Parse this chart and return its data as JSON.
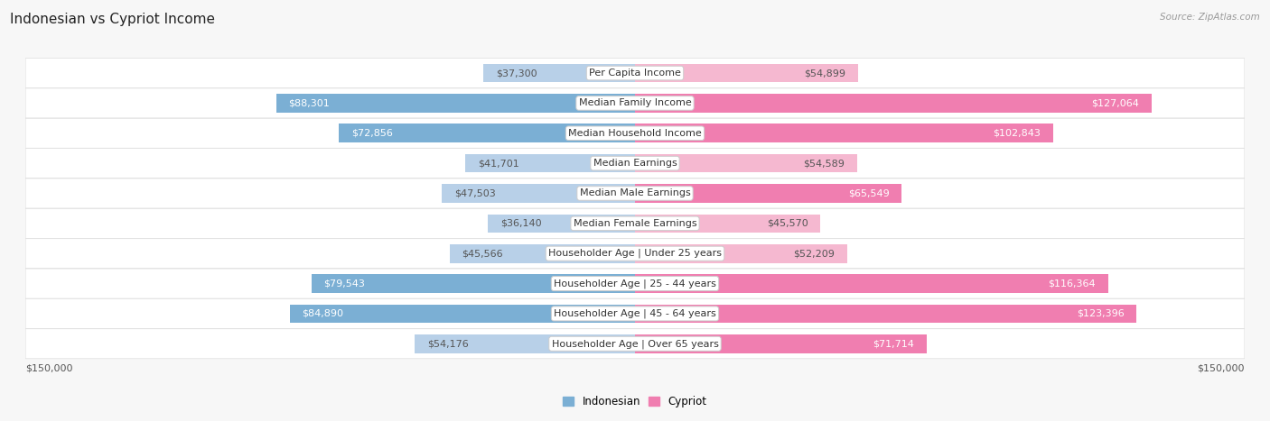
{
  "title": "Indonesian vs Cypriot Income",
  "source": "Source: ZipAtlas.com",
  "categories": [
    "Per Capita Income",
    "Median Family Income",
    "Median Household Income",
    "Median Earnings",
    "Median Male Earnings",
    "Median Female Earnings",
    "Householder Age | Under 25 years",
    "Householder Age | 25 - 44 years",
    "Householder Age | 45 - 64 years",
    "Householder Age | Over 65 years"
  ],
  "indonesian_values": [
    37300,
    88301,
    72856,
    41701,
    47503,
    36140,
    45566,
    79543,
    84890,
    54176
  ],
  "cypriot_values": [
    54899,
    127064,
    102843,
    54589,
    65549,
    45570,
    52209,
    116364,
    123396,
    71714
  ],
  "indonesian_labels": [
    "$37,300",
    "$88,301",
    "$72,856",
    "$41,701",
    "$47,503",
    "$36,140",
    "$45,566",
    "$79,543",
    "$84,890",
    "$54,176"
  ],
  "cypriot_labels": [
    "$54,899",
    "$127,064",
    "$102,843",
    "$54,589",
    "$65,549",
    "$45,570",
    "$52,209",
    "$116,364",
    "$123,396",
    "$71,714"
  ],
  "max_value": 150000,
  "indonesian_color_strong": "#7BAFD4",
  "indonesian_color_light": "#B8D0E8",
  "cypriot_color_strong": "#F07EB0",
  "cypriot_color_light": "#F5B8D0",
  "background_color": "#f7f7f7",
  "title_fontsize": 11,
  "label_fontsize": 8,
  "value_fontsize": 8,
  "axis_label": "$150,000",
  "indo_strong_threshold": 60000,
  "cyp_strong_threshold": 60000
}
